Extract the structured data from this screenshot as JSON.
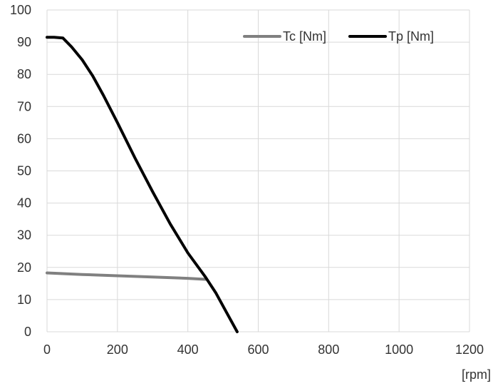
{
  "chart_data": {
    "type": "line",
    "title": "",
    "xlabel": "[rpm]",
    "ylabel": "",
    "xlim": [
      0,
      1200
    ],
    "ylim": [
      0,
      100
    ],
    "x_ticks": [
      0,
      200,
      400,
      600,
      800,
      1000,
      1200
    ],
    "y_ticks": [
      0,
      10,
      20,
      30,
      40,
      50,
      60,
      70,
      80,
      90,
      100
    ],
    "grid": true,
    "legend_position": "top-right",
    "series": [
      {
        "name": "Tc [Nm]",
        "color": "#808080",
        "points": [
          [
            0,
            18.3
          ],
          [
            100,
            17.8
          ],
          [
            200,
            17.4
          ],
          [
            300,
            17.0
          ],
          [
            400,
            16.6
          ],
          [
            450,
            16.3
          ]
        ]
      },
      {
        "name": "Tp [Nm]",
        "color": "#000000",
        "points": [
          [
            0,
            91.5
          ],
          [
            20,
            91.5
          ],
          [
            45,
            91.3
          ],
          [
            70,
            88.5
          ],
          [
            100,
            84.5
          ],
          [
            130,
            79.5
          ],
          [
            160,
            73.5
          ],
          [
            200,
            65.0
          ],
          [
            250,
            54.0
          ],
          [
            300,
            43.5
          ],
          [
            350,
            33.5
          ],
          [
            400,
            24.5
          ],
          [
            450,
            17.0
          ],
          [
            480,
            12.0
          ],
          [
            510,
            6.0
          ],
          [
            540,
            0.0
          ]
        ]
      }
    ]
  }
}
